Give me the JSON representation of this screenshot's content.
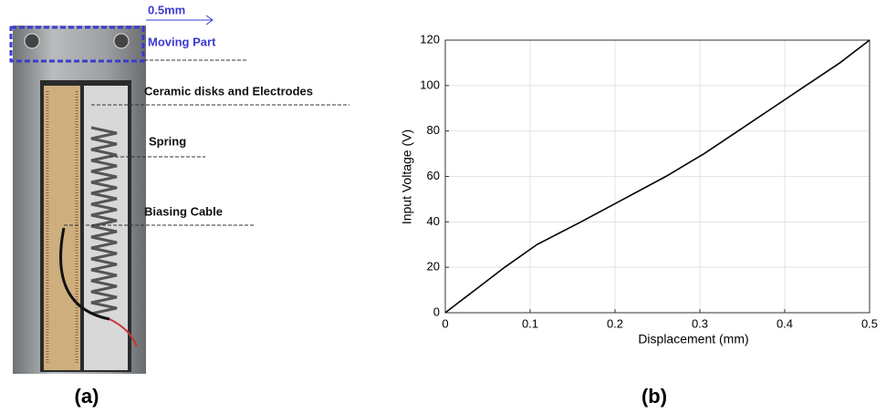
{
  "photo": {
    "scale_label": "0.5mm",
    "moving_part": "Moving Part",
    "ceramic": "Ceramic disks and Electrodes",
    "spring": "Spring",
    "cable": "Biasing Cable"
  },
  "panel_labels": [
    "(a)",
    "(b)"
  ],
  "chart_data": {
    "type": "line",
    "xlabel": "Displacement (mm)",
    "ylabel": "Input Voltage (V)",
    "x": [
      0,
      0.035,
      0.07,
      0.108,
      0.16,
      0.21,
      0.26,
      0.305,
      0.345,
      0.385,
      0.425,
      0.465,
      0.5
    ],
    "series": [
      {
        "color": "#000000",
        "values": [
          0,
          10,
          20,
          30,
          40,
          50,
          60,
          70,
          80,
          90,
          100,
          110,
          120
        ]
      }
    ],
    "xlim": [
      0,
      0.5
    ],
    "xticks": [
      0,
      0.1,
      0.2,
      0.3,
      0.4,
      0.5
    ],
    "ylim": [
      0,
      120
    ],
    "yticks": [
      0,
      20,
      40,
      60,
      80,
      100,
      120
    ],
    "grid": true
  }
}
